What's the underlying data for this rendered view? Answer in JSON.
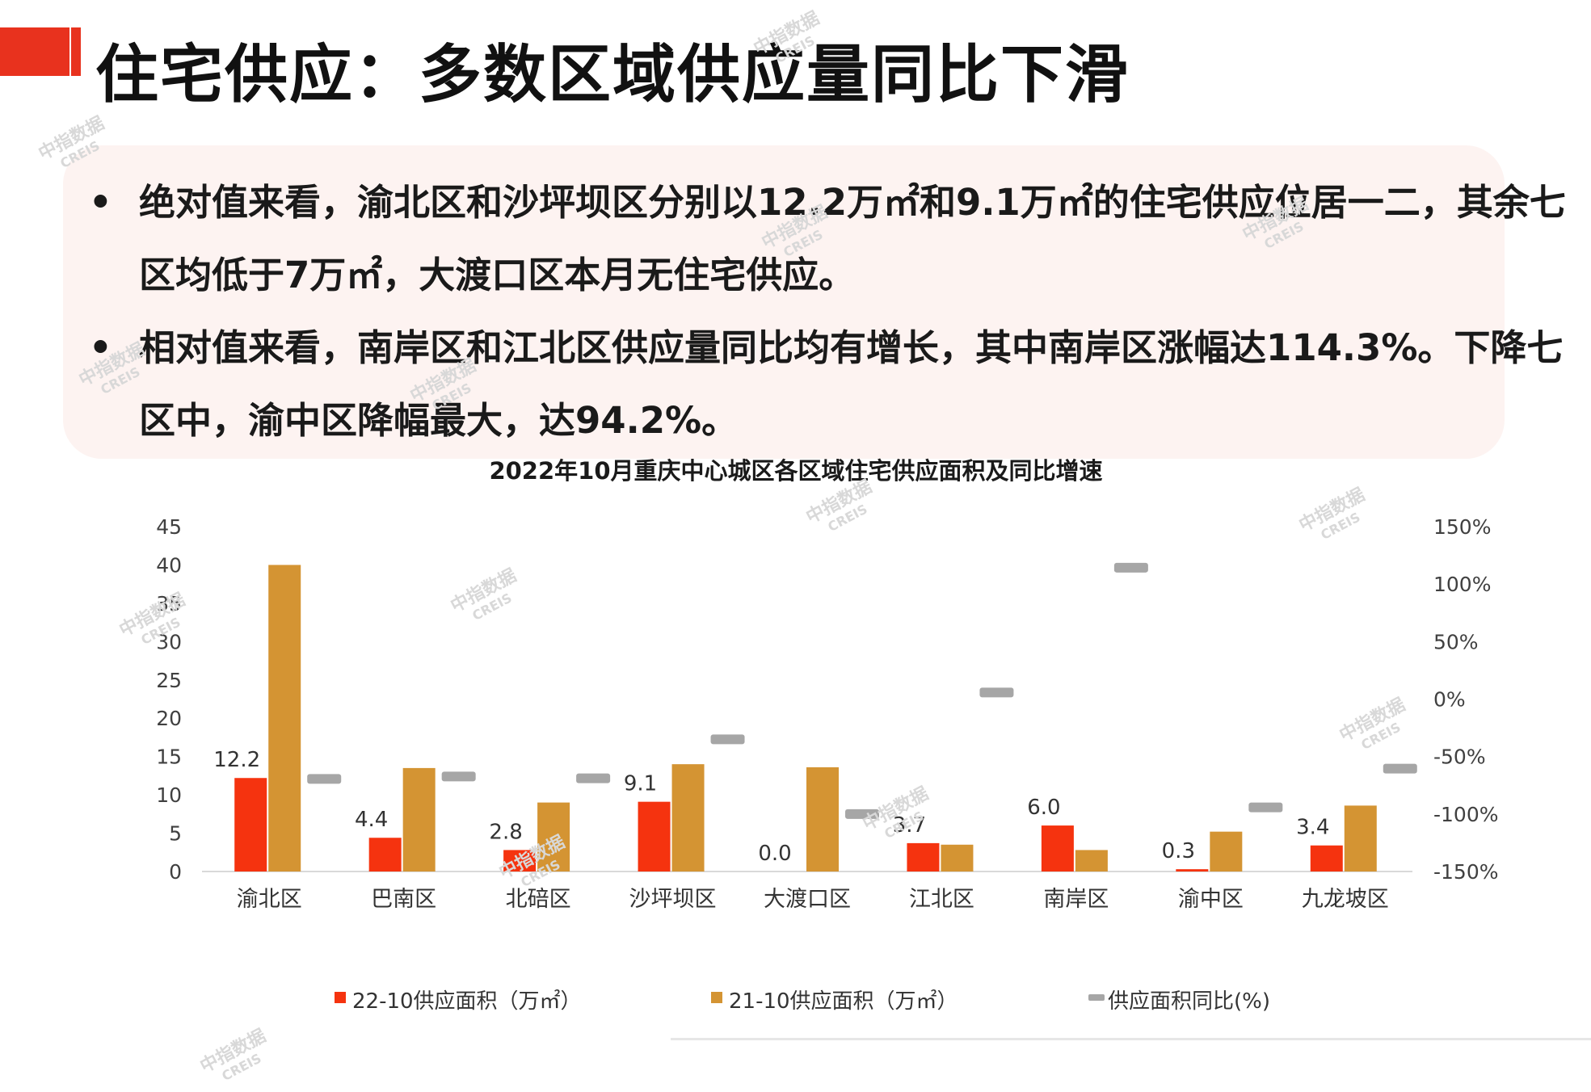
{
  "page": {
    "title": "住宅供应：多数区域供应量同比下滑",
    "bullets": [
      "绝对值来看，渝北区和沙坪坝区分别以12.2万㎡和9.1万㎡的住宅供应位居一二，其余七区均低于7万㎡，大渡口区本月无住宅供应。",
      "相对值来看，南岸区和江北区供应量同比均有增长，其中南岸区涨幅达114.3%。下降七区中，渝中区降幅最大，达94.2%。"
    ],
    "bullet_marker": "•",
    "watermark_text": "中指数据",
    "watermark_sub": "CREIS"
  },
  "colors": {
    "accent": "#e8321e",
    "series_2210": "#f5330f",
    "series_2110": "#d49433",
    "series_yoy": "#a6a6a6"
  },
  "chart_data": {
    "type": "bar",
    "title": "2022年10月重庆中心城区各区域住宅供应面积及同比增速",
    "categories": [
      "渝北区",
      "巴南区",
      "北碚区",
      "沙坪坝区",
      "大渡口区",
      "江北区",
      "南岸区",
      "渝中区",
      "九龙坡区"
    ],
    "series": [
      {
        "name": "22-10供应面积（万㎡）",
        "type": "bar",
        "axis": "left",
        "values": [
          12.2,
          4.4,
          2.8,
          9.1,
          0.0,
          3.7,
          6.0,
          0.3,
          3.4
        ],
        "labels": [
          "12.2",
          "4.4",
          "2.8",
          "9.1",
          "0.0",
          "3.7",
          "6.0",
          "0.3",
          "3.4"
        ]
      },
      {
        "name": "21-10供应面积（万㎡）",
        "type": "bar",
        "axis": "left",
        "values": [
          40.0,
          13.5,
          9.0,
          14.0,
          13.6,
          3.5,
          2.8,
          5.2,
          8.6
        ]
      },
      {
        "name": "供应面积同比(%)",
        "type": "dash",
        "axis": "right",
        "values": [
          -69.5,
          -67.4,
          -68.9,
          -35.0,
          -100.0,
          5.7,
          114.3,
          -94.2,
          -60.5
        ]
      }
    ],
    "y_left": {
      "min": 0,
      "max": 45,
      "ticks": [
        "0",
        "5",
        "10",
        "15",
        "20",
        "25",
        "30",
        "35",
        "40",
        "45"
      ]
    },
    "y_right": {
      "min": -150,
      "max": 150,
      "ticks": [
        "-150%",
        "-100%",
        "-50%",
        "0%",
        "50%",
        "100%",
        "150%"
      ]
    },
    "legend_position": "bottom",
    "grid": false
  }
}
